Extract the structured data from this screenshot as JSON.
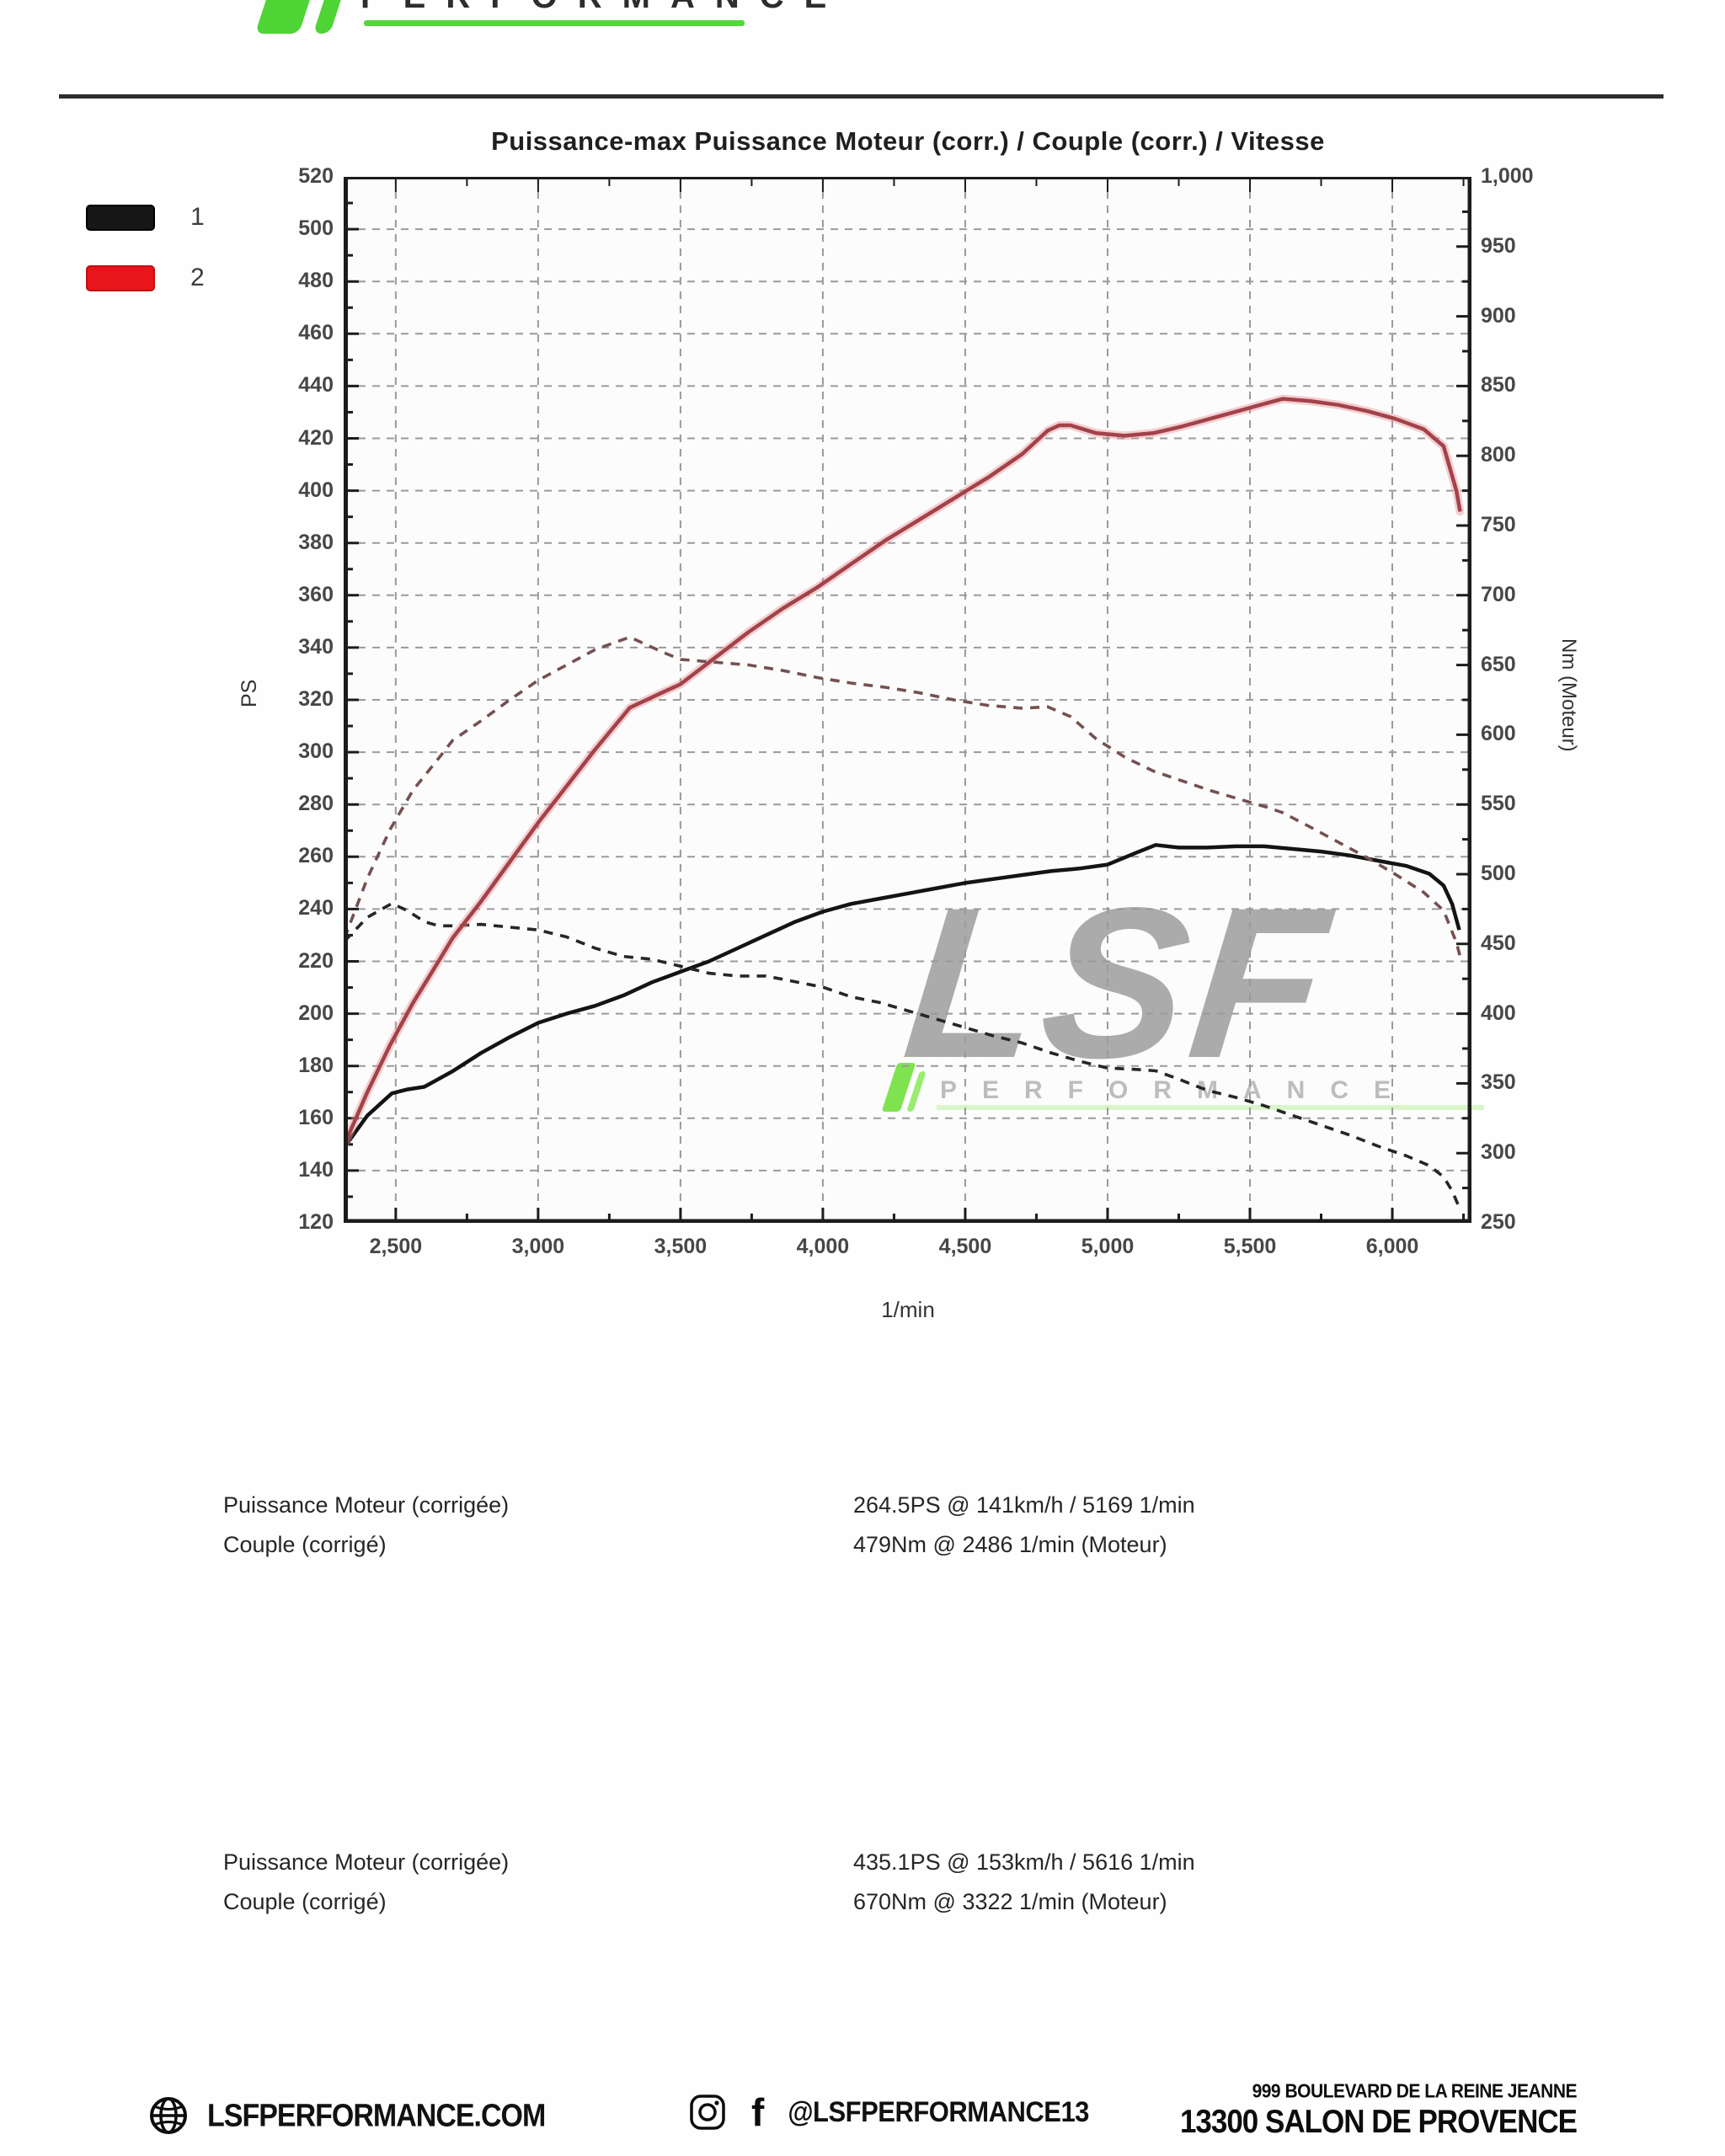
{
  "header": {
    "brand_word": "PERFORMANCE"
  },
  "chart_data": {
    "type": "line",
    "title": "Puissance-max Puissance Moteur (corr.) / Couple (corr.) / Vitesse",
    "xlabel": "1/min",
    "ylabel_left": "PS",
    "ylabel_right": "Nm (Moteur)",
    "x_range": [
      2317,
      6278
    ],
    "y_left_range": [
      120,
      520
    ],
    "y_right_range": [
      250,
      1000
    ],
    "x_ticks": [
      2500,
      3000,
      3500,
      4000,
      4500,
      5000,
      5500,
      6000
    ],
    "y_left_ticks": [
      520,
      500,
      480,
      460,
      440,
      420,
      400,
      380,
      360,
      340,
      320,
      300,
      280,
      260,
      240,
      220,
      200,
      180,
      160,
      140,
      120
    ],
    "y_right_ticks": [
      1000,
      950,
      900,
      850,
      800,
      750,
      700,
      650,
      600,
      550,
      500,
      450,
      400,
      350,
      300,
      250
    ],
    "grid": "dashed; horizontal every 20 PS, vertical every 500 rpm",
    "legend_position": "outside-top-left",
    "legend": [
      {
        "label": "1",
        "color": "#161616"
      },
      {
        "label": "2",
        "color": "#e8151b"
      }
    ],
    "watermark": {
      "text": "LSF",
      "subtext": "PERFORMANCE"
    },
    "series": [
      {
        "name": "power_run1",
        "legend": "1",
        "axis": "left",
        "unit": "PS",
        "style": "solid",
        "color": "#141414",
        "points": [
          [
            2320,
            149
          ],
          [
            2400,
            161
          ],
          [
            2486,
            169.5
          ],
          [
            2540,
            171
          ],
          [
            2600,
            172
          ],
          [
            2700,
            178
          ],
          [
            2800,
            185
          ],
          [
            2900,
            191
          ],
          [
            3000,
            196.5
          ],
          [
            3100,
            200
          ],
          [
            3200,
            203
          ],
          [
            3300,
            207
          ],
          [
            3400,
            212
          ],
          [
            3500,
            216
          ],
          [
            3600,
            220
          ],
          [
            3700,
            225
          ],
          [
            3800,
            230
          ],
          [
            3900,
            235
          ],
          [
            4000,
            239
          ],
          [
            4100,
            242
          ],
          [
            4200,
            244
          ],
          [
            4300,
            246
          ],
          [
            4400,
            248
          ],
          [
            4500,
            250
          ],
          [
            4600,
            251.5
          ],
          [
            4700,
            253
          ],
          [
            4800,
            254.5
          ],
          [
            4900,
            255.5
          ],
          [
            5000,
            257
          ],
          [
            5100,
            261.5
          ],
          [
            5169,
            264.5
          ],
          [
            5250,
            263.5
          ],
          [
            5350,
            263.5
          ],
          [
            5450,
            264
          ],
          [
            5550,
            264
          ],
          [
            5650,
            263
          ],
          [
            5750,
            262
          ],
          [
            5850,
            260.5
          ],
          [
            5950,
            258.5
          ],
          [
            6050,
            256.5
          ],
          [
            6130,
            253.5
          ],
          [
            6180,
            249
          ],
          [
            6210,
            242
          ],
          [
            6235,
            232
          ]
        ]
      },
      {
        "name": "torque_run1",
        "legend": "1",
        "axis": "right",
        "unit": "Nm",
        "style": "dashed",
        "color": "#262626",
        "points": [
          [
            2320,
            452
          ],
          [
            2400,
            469
          ],
          [
            2486,
            479
          ],
          [
            2540,
            474
          ],
          [
            2600,
            466
          ],
          [
            2650,
            463
          ],
          [
            2700,
            463
          ],
          [
            2800,
            464
          ],
          [
            2900,
            462
          ],
          [
            3000,
            460
          ],
          [
            3100,
            455
          ],
          [
            3200,
            447
          ],
          [
            3300,
            441
          ],
          [
            3400,
            439
          ],
          [
            3500,
            434
          ],
          [
            3600,
            429
          ],
          [
            3700,
            427
          ],
          [
            3800,
            427
          ],
          [
            3900,
            423
          ],
          [
            4000,
            419
          ],
          [
            4100,
            412
          ],
          [
            4200,
            408
          ],
          [
            4300,
            402
          ],
          [
            4400,
            396
          ],
          [
            4500,
            390
          ],
          [
            4600,
            384
          ],
          [
            4700,
            379
          ],
          [
            4800,
            372
          ],
          [
            4900,
            366
          ],
          [
            5000,
            361
          ],
          [
            5100,
            360
          ],
          [
            5169,
            359
          ],
          [
            5250,
            353
          ],
          [
            5350,
            345
          ],
          [
            5450,
            340
          ],
          [
            5550,
            334
          ],
          [
            5650,
            327
          ],
          [
            5750,
            320
          ],
          [
            5850,
            313
          ],
          [
            5950,
            305
          ],
          [
            6050,
            298
          ],
          [
            6130,
            291
          ],
          [
            6180,
            283
          ],
          [
            6210,
            273
          ],
          [
            6235,
            261
          ]
        ]
      },
      {
        "name": "power_run2",
        "legend": "2",
        "axis": "left",
        "unit": "PS",
        "style": "solid",
        "color": "#a2424a",
        "points": [
          [
            2320,
            150
          ],
          [
            2400,
            170
          ],
          [
            2480,
            188
          ],
          [
            2560,
            204
          ],
          [
            2650,
            220
          ],
          [
            2700,
            229
          ],
          [
            2800,
            243
          ],
          [
            2900,
            258
          ],
          [
            3000,
            273
          ],
          [
            3100,
            287
          ],
          [
            3200,
            301
          ],
          [
            3322,
            317
          ],
          [
            3440,
            323
          ],
          [
            3500,
            326
          ],
          [
            3620,
            336
          ],
          [
            3740,
            346
          ],
          [
            3860,
            355
          ],
          [
            3980,
            363
          ],
          [
            4100,
            372
          ],
          [
            4220,
            381
          ],
          [
            4340,
            389
          ],
          [
            4460,
            397
          ],
          [
            4580,
            405
          ],
          [
            4700,
            414
          ],
          [
            4790,
            423
          ],
          [
            4830,
            425
          ],
          [
            4870,
            425
          ],
          [
            4960,
            422
          ],
          [
            5060,
            421
          ],
          [
            5160,
            422
          ],
          [
            5260,
            424.5
          ],
          [
            5360,
            427.5
          ],
          [
            5460,
            430.5
          ],
          [
            5560,
            433.5
          ],
          [
            5616,
            435.1
          ],
          [
            5710,
            434.3
          ],
          [
            5810,
            432.8
          ],
          [
            5910,
            430.5
          ],
          [
            6010,
            427.5
          ],
          [
            6110,
            423.5
          ],
          [
            6180,
            417
          ],
          [
            6225,
            400
          ],
          [
            6238,
            392
          ]
        ]
      },
      {
        "name": "torque_run2",
        "legend": "2",
        "axis": "right",
        "unit": "Nm",
        "style": "dashed",
        "color": "#755050",
        "points": [
          [
            2320,
            454
          ],
          [
            2400,
            497
          ],
          [
            2480,
            532
          ],
          [
            2560,
            560
          ],
          [
            2650,
            583
          ],
          [
            2700,
            596
          ],
          [
            2800,
            610
          ],
          [
            2900,
            625
          ],
          [
            3000,
            639
          ],
          [
            3100,
            650
          ],
          [
            3200,
            661
          ],
          [
            3322,
            670
          ],
          [
            3440,
            659
          ],
          [
            3500,
            654
          ],
          [
            3620,
            652
          ],
          [
            3740,
            650
          ],
          [
            3860,
            646
          ],
          [
            3980,
            641
          ],
          [
            4100,
            637
          ],
          [
            4220,
            634
          ],
          [
            4340,
            630
          ],
          [
            4460,
            625
          ],
          [
            4580,
            621
          ],
          [
            4700,
            619
          ],
          [
            4790,
            620
          ],
          [
            4870,
            613
          ],
          [
            4960,
            597
          ],
          [
            5060,
            584
          ],
          [
            5160,
            574
          ],
          [
            5260,
            567
          ],
          [
            5360,
            560
          ],
          [
            5460,
            554
          ],
          [
            5560,
            548
          ],
          [
            5616,
            544
          ],
          [
            5710,
            534
          ],
          [
            5810,
            523
          ],
          [
            5910,
            512
          ],
          [
            6010,
            500
          ],
          [
            6110,
            487
          ],
          [
            6180,
            474
          ],
          [
            6225,
            451
          ],
          [
            6238,
            441
          ]
        ]
      }
    ]
  },
  "results": [
    {
      "rows": [
        {
          "label": "Puissance Moteur (corrigée)",
          "value": "264.5PS @ 141km/h / 5169 1/min"
        },
        {
          "label": "Couple (corrigé)",
          "value": "479Nm @ 2486 1/min (Moteur)"
        }
      ]
    },
    {
      "rows": [
        {
          "label": "Puissance Moteur (corrigée)",
          "value": "435.1PS @ 153km/h / 5616 1/min"
        },
        {
          "label": "Couple (corrigé)",
          "value": "670Nm @ 3322 1/min (Moteur)"
        }
      ]
    }
  ],
  "footer": {
    "website": "LSFPERFORMANCE.COM",
    "social_handle": "@LSFPERFORMANCE13",
    "address_line1": "999 BOULEVARD DE LA REINE JEANNE",
    "address_line2": "13300 SALON DE PROVENCE"
  }
}
